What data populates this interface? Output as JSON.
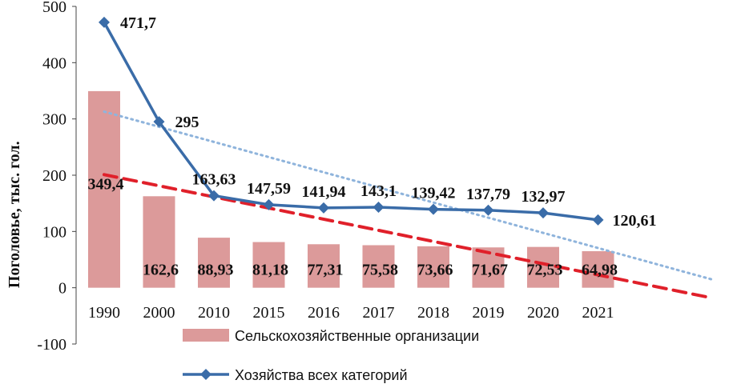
{
  "chart_data": {
    "type": "bar",
    "title": "",
    "xlabel": "",
    "ylabel": "Поголовье, тыс. гол.",
    "ylim": [
      -100,
      500
    ],
    "yticks": [
      "-100",
      "0",
      "100",
      "200",
      "300",
      "400",
      "500"
    ],
    "categories": [
      "1990",
      "2000",
      "2010",
      "2015",
      "2016",
      "2017",
      "2018",
      "2019",
      "2020",
      "2021"
    ],
    "series": [
      {
        "name": "Сельскохозяйственные организации",
        "type": "bar",
        "color": "#dc9a9a",
        "values": [
          349.4,
          162.6,
          88.93,
          81.18,
          77.31,
          75.58,
          73.66,
          71.67,
          72.53,
          64.98
        ],
        "labels": [
          "349,4",
          "162,6",
          "88,93",
          "81,18",
          "77,31",
          "75,58",
          "73,66",
          "71,67",
          "72,53",
          "64,98"
        ]
      },
      {
        "name": "Хозяйства всех категорий",
        "type": "line",
        "color": "#3a6ca8",
        "marker": "diamond",
        "values": [
          471.7,
          295,
          163.63,
          147.59,
          141.94,
          143.1,
          139.42,
          137.79,
          132.97,
          120.61
        ],
        "labels": [
          "471,7",
          "295",
          "163,63",
          "147,59",
          "141,94",
          "143,1",
          "139,42",
          "137,79",
          "132,97",
          "120,61"
        ]
      }
    ],
    "trendlines": [
      {
        "series": "Хозяйства всех категорий",
        "style": "dotted",
        "color": "#8fb4dc",
        "start": 313,
        "end": 15
      },
      {
        "series": "Сельскохозяйственные организации",
        "style": "dashed",
        "color": "#e0202a",
        "start": 201,
        "end": -18
      }
    ],
    "grid": false,
    "legend_position": "bottom"
  }
}
